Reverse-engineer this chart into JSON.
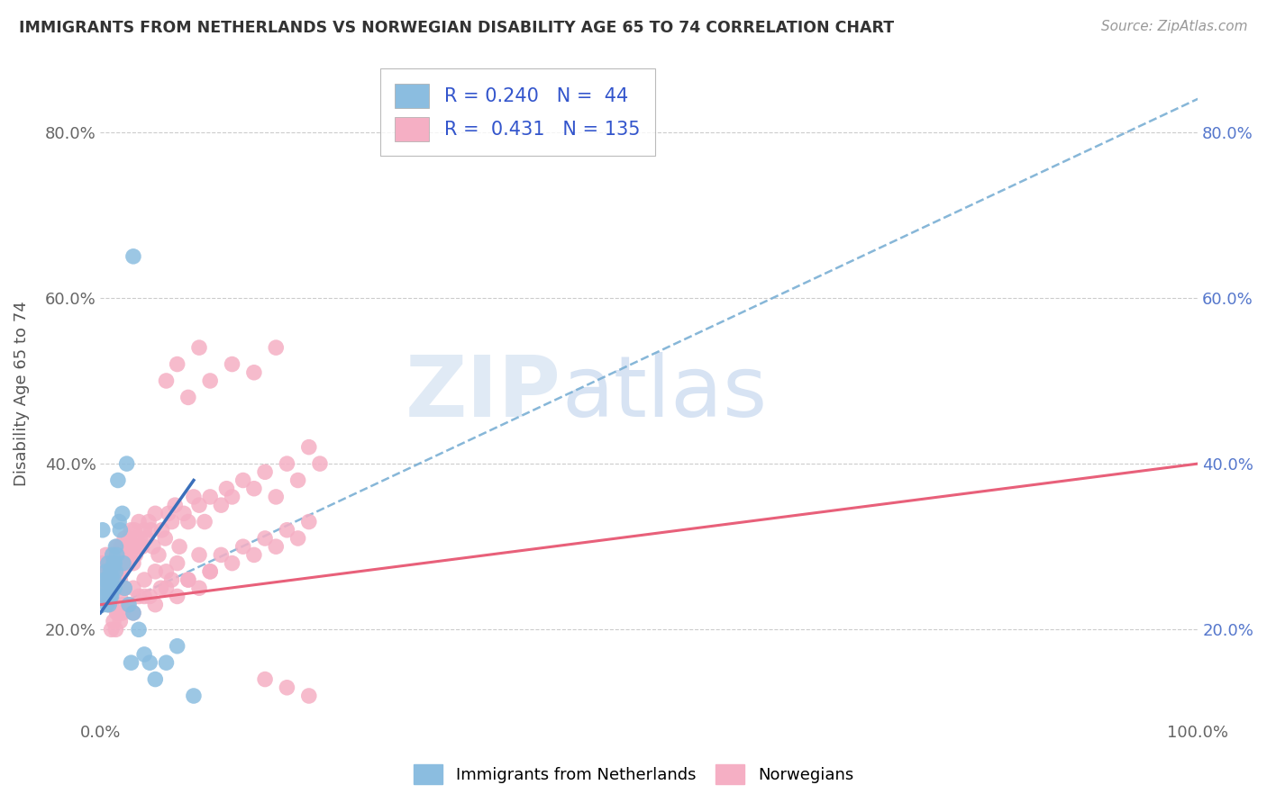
{
  "title": "IMMIGRANTS FROM NETHERLANDS VS NORWEGIAN DISABILITY AGE 65 TO 74 CORRELATION CHART",
  "source": "Source: ZipAtlas.com",
  "ylabel": "Disability Age 65 to 74",
  "xlim": [
    0.0,
    1.0
  ],
  "ylim": [
    0.09,
    0.88
  ],
  "yticks": [
    0.2,
    0.4,
    0.6,
    0.8
  ],
  "ytick_labels": [
    "20.0%",
    "40.0%",
    "60.0%",
    "80.0%"
  ],
  "xtick_vals": [
    0.0,
    0.2,
    0.4,
    0.6,
    0.8,
    1.0
  ],
  "xtick_labels": [
    "0.0%",
    "",
    "",
    "",
    "",
    "100.0%"
  ],
  "legend_r1": "R = 0.240",
  "legend_n1": "N =  44",
  "legend_r2": "R =  0.431",
  "legend_n2": "N = 135",
  "blue_color": "#8bbde0",
  "pink_color": "#f5afc4",
  "blue_line_color": "#7aafd4",
  "pink_line_color": "#e8607a",
  "blue_scatter_x": [
    0.001,
    0.002,
    0.003,
    0.004,
    0.005,
    0.005,
    0.006,
    0.006,
    0.007,
    0.007,
    0.008,
    0.008,
    0.009,
    0.009,
    0.01,
    0.01,
    0.01,
    0.011,
    0.011,
    0.012,
    0.012,
    0.013,
    0.013,
    0.014,
    0.014,
    0.015,
    0.016,
    0.017,
    0.018,
    0.02,
    0.021,
    0.022,
    0.024,
    0.026,
    0.028,
    0.03,
    0.035,
    0.04,
    0.045,
    0.05,
    0.06,
    0.07,
    0.085,
    0.03
  ],
  "blue_scatter_y": [
    0.24,
    0.32,
    0.25,
    0.26,
    0.27,
    0.24,
    0.23,
    0.26,
    0.25,
    0.28,
    0.26,
    0.23,
    0.24,
    0.27,
    0.25,
    0.24,
    0.26,
    0.27,
    0.29,
    0.26,
    0.28,
    0.25,
    0.28,
    0.27,
    0.3,
    0.29,
    0.38,
    0.33,
    0.32,
    0.34,
    0.28,
    0.25,
    0.4,
    0.23,
    0.16,
    0.22,
    0.2,
    0.17,
    0.16,
    0.14,
    0.16,
    0.18,
    0.12,
    0.65
  ],
  "pink_scatter_x": [
    0.001,
    0.002,
    0.003,
    0.003,
    0.004,
    0.004,
    0.005,
    0.005,
    0.006,
    0.006,
    0.007,
    0.007,
    0.008,
    0.008,
    0.009,
    0.009,
    0.01,
    0.01,
    0.011,
    0.011,
    0.012,
    0.012,
    0.013,
    0.013,
    0.014,
    0.014,
    0.015,
    0.015,
    0.016,
    0.016,
    0.017,
    0.017,
    0.018,
    0.018,
    0.019,
    0.02,
    0.02,
    0.021,
    0.022,
    0.023,
    0.024,
    0.025,
    0.026,
    0.027,
    0.028,
    0.029,
    0.03,
    0.031,
    0.032,
    0.033,
    0.034,
    0.035,
    0.036,
    0.038,
    0.04,
    0.042,
    0.044,
    0.046,
    0.048,
    0.05,
    0.053,
    0.056,
    0.059,
    0.062,
    0.065,
    0.068,
    0.072,
    0.076,
    0.08,
    0.085,
    0.09,
    0.095,
    0.1,
    0.11,
    0.115,
    0.12,
    0.13,
    0.14,
    0.15,
    0.16,
    0.17,
    0.18,
    0.19,
    0.2,
    0.015,
    0.018,
    0.02,
    0.022,
    0.025,
    0.03,
    0.035,
    0.04,
    0.045,
    0.05,
    0.055,
    0.06,
    0.065,
    0.07,
    0.08,
    0.09,
    0.1,
    0.11,
    0.12,
    0.13,
    0.14,
    0.15,
    0.16,
    0.17,
    0.18,
    0.19,
    0.06,
    0.07,
    0.08,
    0.09,
    0.1,
    0.12,
    0.14,
    0.16,
    0.01,
    0.012,
    0.014,
    0.016,
    0.018,
    0.02,
    0.03,
    0.04,
    0.05,
    0.06,
    0.07,
    0.08,
    0.09,
    0.1,
    0.15,
    0.17,
    0.19
  ],
  "pink_scatter_y": [
    0.26,
    0.28,
    0.24,
    0.27,
    0.25,
    0.28,
    0.26,
    0.29,
    0.24,
    0.27,
    0.25,
    0.28,
    0.26,
    0.23,
    0.25,
    0.28,
    0.27,
    0.25,
    0.26,
    0.29,
    0.27,
    0.25,
    0.28,
    0.26,
    0.29,
    0.27,
    0.26,
    0.3,
    0.27,
    0.25,
    0.29,
    0.27,
    0.3,
    0.26,
    0.28,
    0.27,
    0.3,
    0.28,
    0.31,
    0.29,
    0.3,
    0.28,
    0.31,
    0.29,
    0.32,
    0.3,
    0.28,
    0.32,
    0.29,
    0.31,
    0.3,
    0.33,
    0.31,
    0.3,
    0.32,
    0.31,
    0.33,
    0.32,
    0.3,
    0.34,
    0.29,
    0.32,
    0.31,
    0.34,
    0.33,
    0.35,
    0.3,
    0.34,
    0.33,
    0.36,
    0.35,
    0.33,
    0.36,
    0.35,
    0.37,
    0.36,
    0.38,
    0.37,
    0.39,
    0.36,
    0.4,
    0.38,
    0.42,
    0.4,
    0.22,
    0.24,
    0.22,
    0.25,
    0.23,
    0.25,
    0.24,
    0.26,
    0.24,
    0.27,
    0.25,
    0.27,
    0.26,
    0.28,
    0.26,
    0.29,
    0.27,
    0.29,
    0.28,
    0.3,
    0.29,
    0.31,
    0.3,
    0.32,
    0.31,
    0.33,
    0.5,
    0.52,
    0.48,
    0.54,
    0.5,
    0.52,
    0.51,
    0.54,
    0.2,
    0.21,
    0.2,
    0.22,
    0.21,
    0.23,
    0.22,
    0.24,
    0.23,
    0.25,
    0.24,
    0.26,
    0.25,
    0.27,
    0.14,
    0.13,
    0.12
  ],
  "blue_trend_x": [
    0.0,
    1.0
  ],
  "blue_trend_y": [
    0.22,
    0.84
  ],
  "pink_trend_x": [
    0.0,
    1.0
  ],
  "pink_trend_y": [
    0.23,
    0.4
  ]
}
